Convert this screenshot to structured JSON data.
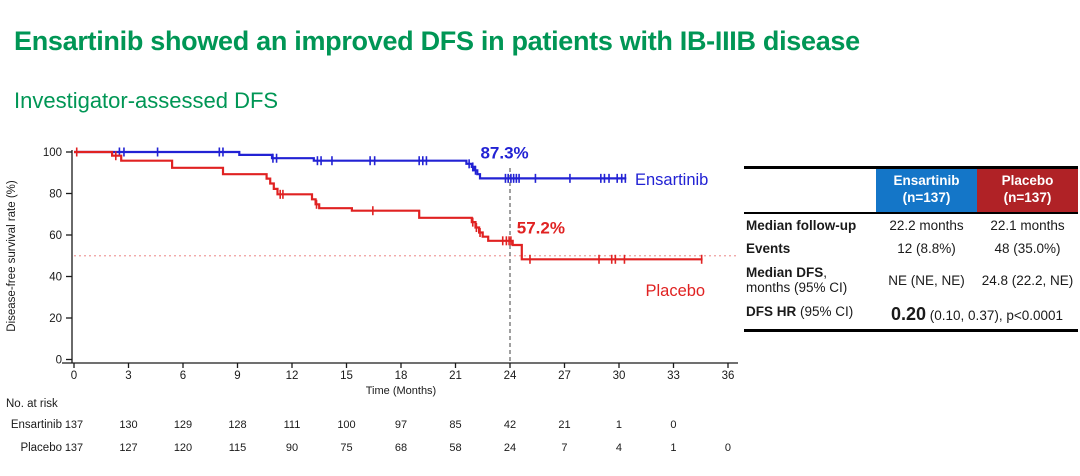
{
  "title": "Ensartinib showed an improved DFS in patients with IB-IIIB disease",
  "subtitle": "Investigator-assessed DFS",
  "colors": {
    "title_green": "#009655",
    "ensartinib_blue": "#2222d4",
    "placebo_red": "#e02222",
    "table_header_blue": "#1476c8",
    "table_header_red": "#b02226",
    "dotted_ref_line": "#ef9f9f",
    "dashed_ref_line": "#808080",
    "axis_black": "#1a1a1a"
  },
  "chart_data": {
    "type": "line",
    "subtype": "kaplan-meier-step",
    "xlabel": "Time (Months)",
    "ylabel": "Disease-free survival rate (%)",
    "xlim": [
      0,
      36
    ],
    "ylim": [
      0,
      100
    ],
    "x_ticks": [
      0,
      3,
      6,
      9,
      12,
      15,
      18,
      21,
      24,
      27,
      30,
      33,
      36
    ],
    "y_ticks": [
      0,
      20,
      40,
      60,
      80,
      100
    ],
    "grid": "off",
    "reference_lines": {
      "vertical_dashed_x": 24,
      "horizontal_dotted_pct": 50
    },
    "series": [
      {
        "name": "Ensartinib",
        "color": "#2222d4",
        "landmark": {
          "text": "87.3%",
          "x": 23.7,
          "y": 96.8
        },
        "name_label": {
          "x": 32.9,
          "y": 84.0
        },
        "points": [
          [
            0,
            100
          ],
          [
            9.1,
            100
          ],
          [
            9.1,
            98.6
          ],
          [
            10.9,
            98.6
          ],
          [
            10.9,
            97.0
          ],
          [
            13.2,
            97.0
          ],
          [
            13.2,
            95.8
          ],
          [
            21.6,
            95.8
          ],
          [
            21.6,
            94.3
          ],
          [
            21.9,
            94.3
          ],
          [
            21.9,
            92.8
          ],
          [
            22.05,
            92.8
          ],
          [
            22.05,
            91.2
          ],
          [
            22.2,
            91.2
          ],
          [
            22.2,
            89.3
          ],
          [
            22.35,
            89.3
          ],
          [
            22.35,
            87.3
          ],
          [
            30.4,
            87.3
          ]
        ],
        "censors": [
          [
            2.5,
            100
          ],
          [
            2.75,
            100
          ],
          [
            4.6,
            100
          ],
          [
            8.0,
            100
          ],
          [
            8.2,
            100
          ],
          [
            10.95,
            97
          ],
          [
            11.15,
            97
          ],
          [
            13.4,
            95.8
          ],
          [
            13.6,
            95.8
          ],
          [
            14.2,
            95.8
          ],
          [
            16.3,
            95.8
          ],
          [
            16.55,
            95.8
          ],
          [
            19.0,
            95.8
          ],
          [
            19.2,
            95.8
          ],
          [
            19.4,
            95.8
          ],
          [
            21.75,
            94.3
          ],
          [
            21.95,
            92.8
          ],
          [
            22.1,
            91.2
          ],
          [
            23.75,
            87.3
          ],
          [
            23.9,
            87.3
          ],
          [
            24.05,
            87.3
          ],
          [
            24.2,
            87.3
          ],
          [
            24.35,
            87.3
          ],
          [
            24.5,
            87.3
          ],
          [
            25.4,
            87.3
          ],
          [
            27.3,
            87.3
          ],
          [
            29.0,
            87.3
          ],
          [
            29.2,
            87.3
          ],
          [
            29.45,
            87.3
          ],
          [
            29.9,
            87.3
          ],
          [
            30.15,
            87.3
          ],
          [
            30.35,
            87.3
          ]
        ]
      },
      {
        "name": "Placebo",
        "color": "#e02222",
        "landmark": {
          "text": "57.2%",
          "x": 25.7,
          "y": 60.7
        },
        "name_label": {
          "x": 33.1,
          "y": 30.5
        },
        "points": [
          [
            0,
            100
          ],
          [
            2.1,
            100
          ],
          [
            2.1,
            98.2
          ],
          [
            2.6,
            98.2
          ],
          [
            2.6,
            95.8
          ],
          [
            5.4,
            95.8
          ],
          [
            5.4,
            92.4
          ],
          [
            8.2,
            92.4
          ],
          [
            8.2,
            89.3
          ],
          [
            10.6,
            89.3
          ],
          [
            10.6,
            87.2
          ],
          [
            10.8,
            87.2
          ],
          [
            10.8,
            84.8
          ],
          [
            11.0,
            84.8
          ],
          [
            11.0,
            82.2
          ],
          [
            11.2,
            82.2
          ],
          [
            11.2,
            79.6
          ],
          [
            13.1,
            79.6
          ],
          [
            13.1,
            77.2
          ],
          [
            13.3,
            77.2
          ],
          [
            13.3,
            74.8
          ],
          [
            13.5,
            74.8
          ],
          [
            13.5,
            72.9
          ],
          [
            15.3,
            72.9
          ],
          [
            15.3,
            71.7
          ],
          [
            19.0,
            71.7
          ],
          [
            19.0,
            68.3
          ],
          [
            21.9,
            68.3
          ],
          [
            21.9,
            66.2
          ],
          [
            22.1,
            66.2
          ],
          [
            22.1,
            63.6
          ],
          [
            22.3,
            63.6
          ],
          [
            22.3,
            61.2
          ],
          [
            22.5,
            61.2
          ],
          [
            22.5,
            59.2
          ],
          [
            22.8,
            59.2
          ],
          [
            22.8,
            57.2
          ],
          [
            24.15,
            57.2
          ],
          [
            24.15,
            55.2
          ],
          [
            24.65,
            55.2
          ],
          [
            24.65,
            48.3
          ],
          [
            34.6,
            48.3
          ]
        ],
        "censors": [
          [
            0.15,
            100
          ],
          [
            2.3,
            98.2
          ],
          [
            11.35,
            79.6
          ],
          [
            11.5,
            79.6
          ],
          [
            13.35,
            74.8
          ],
          [
            16.45,
            71.7
          ],
          [
            21.95,
            66.2
          ],
          [
            22.15,
            63.6
          ],
          [
            22.35,
            61.2
          ],
          [
            23.6,
            57.2
          ],
          [
            23.8,
            57.2
          ],
          [
            23.95,
            57.2
          ],
          [
            24.05,
            57.2
          ],
          [
            25.1,
            48.3
          ],
          [
            28.9,
            48.3
          ],
          [
            29.6,
            48.3
          ],
          [
            29.8,
            48.3
          ],
          [
            30.3,
            48.3
          ],
          [
            34.55,
            48.3
          ]
        ]
      }
    ],
    "at_risk": {
      "title": "No. at risk",
      "rows": [
        {
          "name": "Ensartinib",
          "months": [
            0,
            3,
            6,
            9,
            12,
            15,
            18,
            21,
            24,
            27,
            30,
            33
          ],
          "values": [
            137,
            130,
            129,
            128,
            111,
            100,
            97,
            85,
            42,
            21,
            1,
            0
          ]
        },
        {
          "name": "Placebo",
          "months": [
            0,
            3,
            6,
            9,
            12,
            15,
            18,
            21,
            24,
            27,
            30,
            33,
            36
          ],
          "values": [
            137,
            127,
            120,
            115,
            90,
            75,
            68,
            58,
            24,
            7,
            4,
            1,
            0
          ]
        }
      ]
    }
  },
  "results_table": {
    "columns": [
      {
        "name": "Ensartinib",
        "n": "(n=137)",
        "color": "#1476c8"
      },
      {
        "name": "Placebo",
        "n": "(n=137)",
        "color": "#b02226"
      }
    ],
    "rows": [
      {
        "label_bold": "Median follow-up",
        "label_rest": "",
        "values": [
          "22.2 months",
          "22.1 months"
        ]
      },
      {
        "label_bold": "Events",
        "label_rest": "",
        "values": [
          "12 (8.8%)",
          "48 (35.0%)"
        ]
      },
      {
        "label_bold": "Median DFS",
        "label_comma": ",",
        "label_line2": "months (95% CI)",
        "values": [
          "NE (NE, NE)",
          "24.8 (22.2, NE)"
        ]
      },
      {
        "label_bold": "DFS HR",
        "label_rest": " (95% CI)",
        "hr_bold": "0.20",
        "hr_rest": " (0.10, 0.37), p<0.0001"
      }
    ]
  }
}
